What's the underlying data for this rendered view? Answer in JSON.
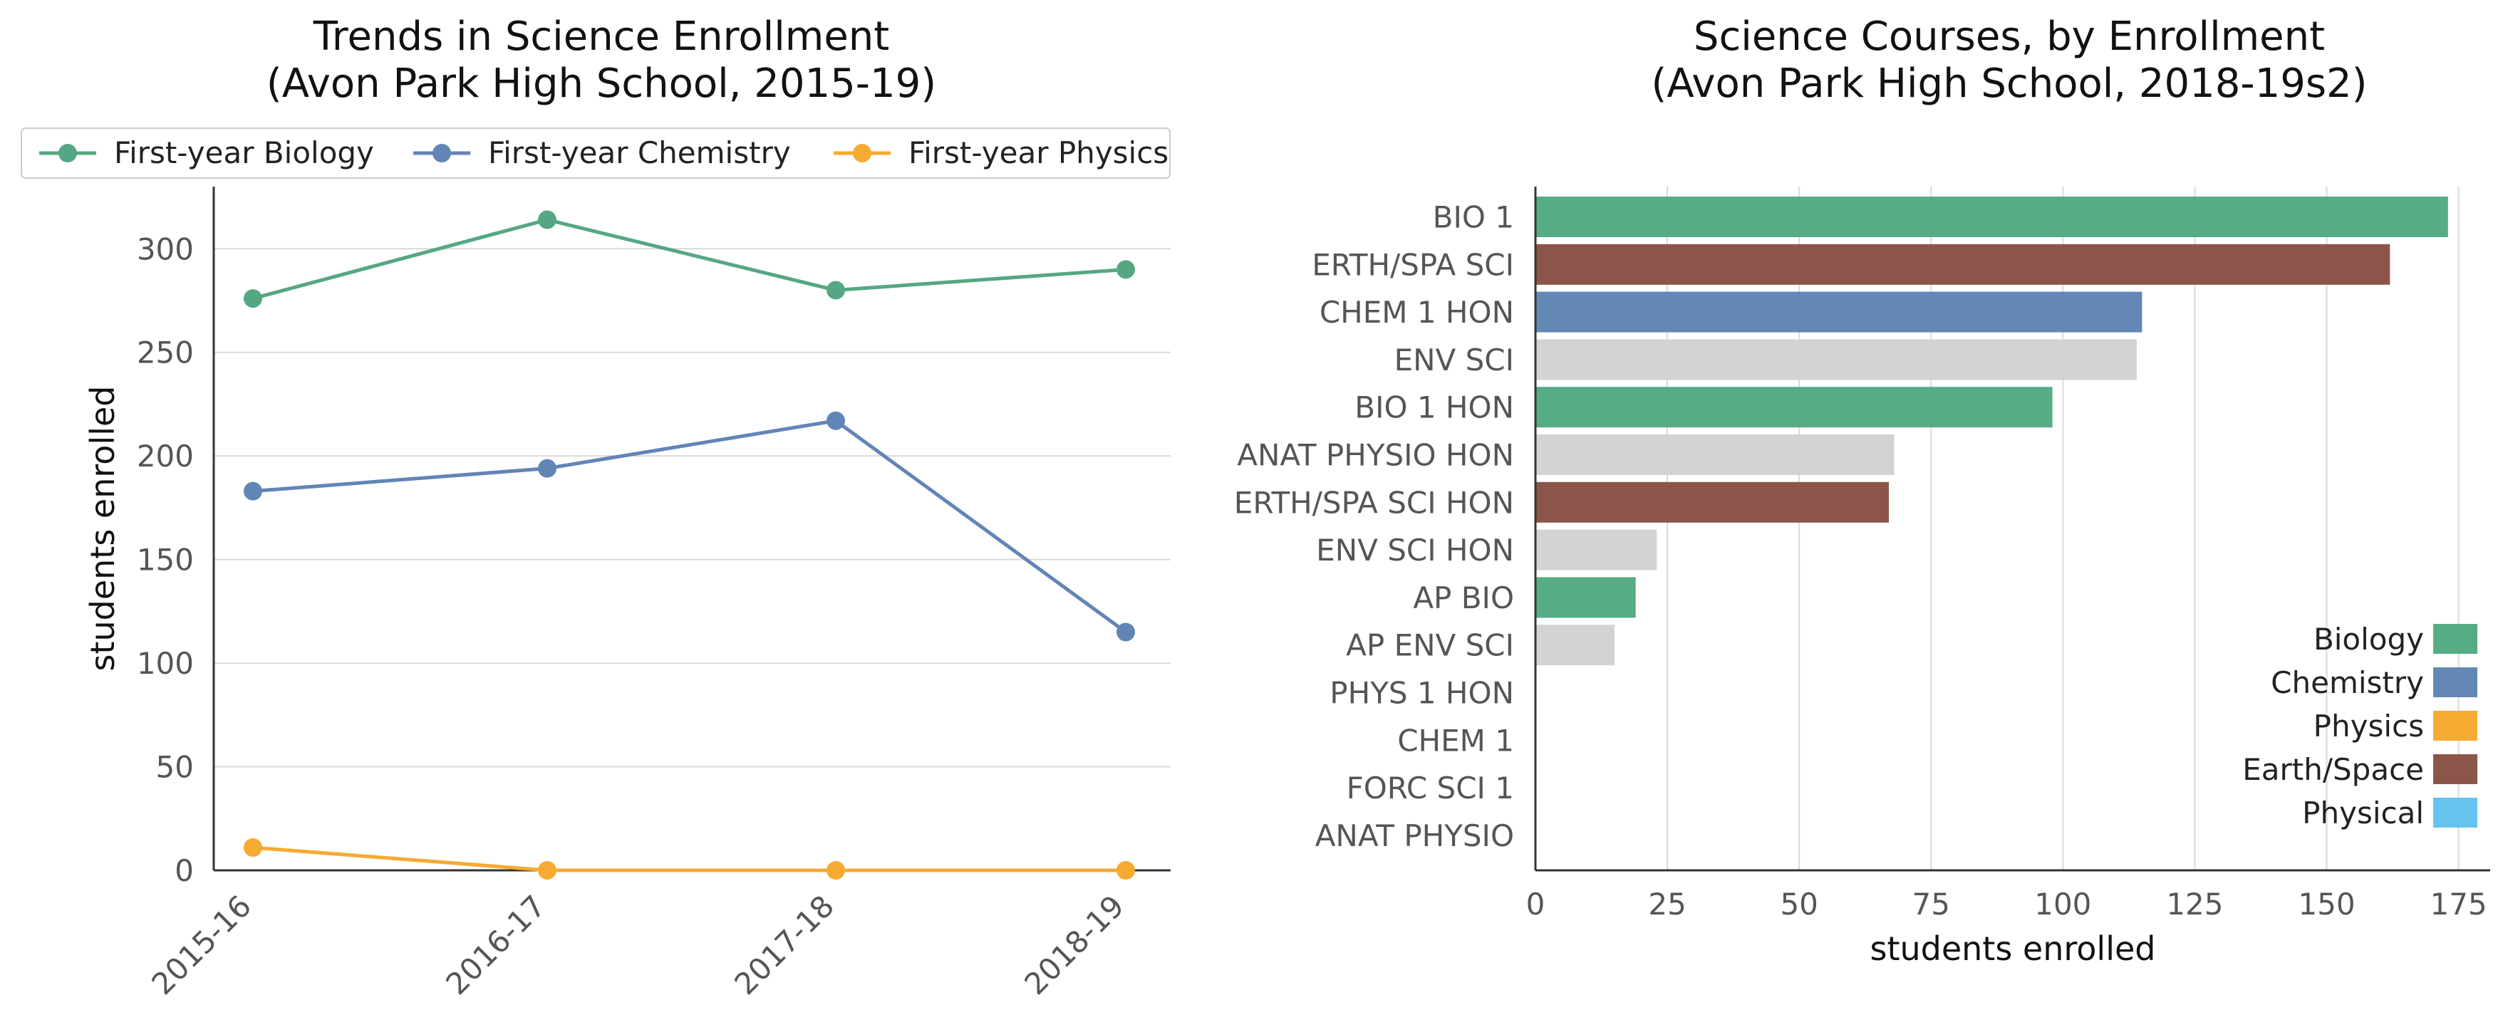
{
  "chart_data": [
    {
      "type": "line",
      "title": "Trends in Science Enrollment\n(Avon Park High School, 2015-19)",
      "xlabel": "",
      "ylabel": "students enrolled",
      "categories": [
        "2015-16",
        "2016-17",
        "2017-18",
        "2018-19"
      ],
      "ylim": [
        0,
        330
      ],
      "yticks": [
        0,
        50,
        100,
        150,
        200,
        250,
        300
      ],
      "grid": "horizontal",
      "legend": "top",
      "series": [
        {
          "name": "First-year Biology",
          "color": "#55a783",
          "values": [
            276,
            314,
            280,
            290
          ]
        },
        {
          "name": "First-year Chemistry",
          "color": "#6185b5",
          "values": [
            183,
            194,
            217,
            115
          ]
        },
        {
          "name": "First-year Physics",
          "color": "#f7aa32",
          "values": [
            11,
            0,
            0,
            0
          ]
        }
      ]
    },
    {
      "type": "bar",
      "orientation": "horizontal",
      "title": "Science Courses, by Enrollment\n(Avon Park High School, 2018-19s2)",
      "xlabel": "students enrolled",
      "ylabel": "",
      "xlim": [
        0,
        181
      ],
      "xticks": [
        0,
        25,
        50,
        75,
        100,
        125,
        150,
        175
      ],
      "grid": "vertical",
      "legend": "bottom-right",
      "categories": [
        "BIO 1",
        "ERTH/SPA SCI",
        "CHEM 1 HON",
        "ENV SCI",
        "BIO 1 HON",
        "ANAT PHYSIO HON",
        "ERTH/SPA SCI HON",
        "ENV SCI HON",
        "AP BIO",
        "AP ENV SCI",
        "PHYS 1 HON",
        "CHEM 1",
        "FORC SCI 1",
        "ANAT PHYSIO"
      ],
      "values": [
        173,
        162,
        115,
        114,
        98,
        68,
        67,
        23,
        19,
        15,
        0,
        0,
        0,
        0
      ],
      "groups": [
        "Biology",
        "Earth/Space",
        "Chemistry",
        "Other",
        "Biology",
        "Other",
        "Earth/Space",
        "Other",
        "Biology",
        "Other",
        "Physics",
        "Chemistry",
        "Other",
        "Other"
      ],
      "group_colors": {
        "Biology": "#55ac85",
        "Chemistry": "#6388b5",
        "Physics": "#f7ab33",
        "Earth/Space": "#8c5549",
        "Physical": "#66c3ee",
        "Other": "#d3d3d3"
      },
      "legend_entries": [
        "Biology",
        "Chemistry",
        "Physics",
        "Earth/Space",
        "Physical"
      ]
    }
  ]
}
